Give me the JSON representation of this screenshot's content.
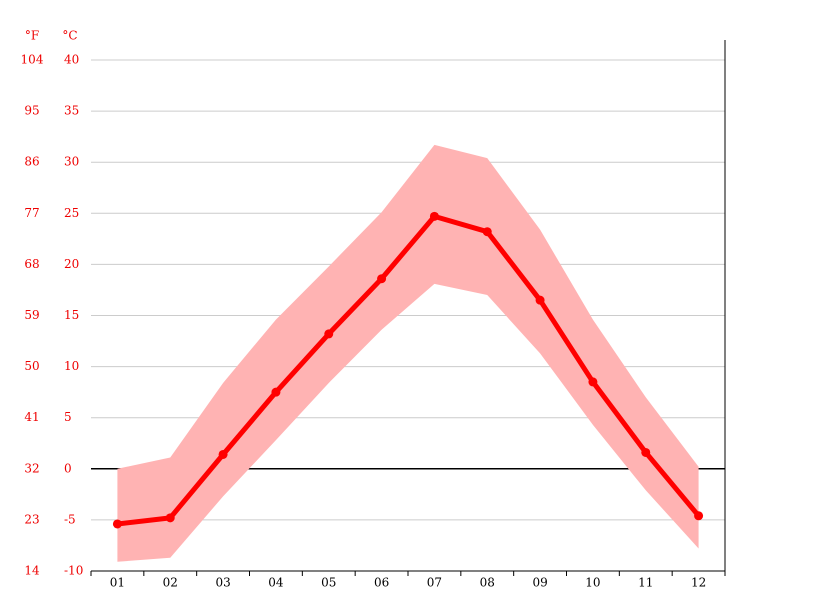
{
  "chart_data": {
    "type": "line",
    "y_unit_label": "°C",
    "y2_unit_label": "°F",
    "categories": [
      "01",
      "02",
      "03",
      "04",
      "05",
      "06",
      "07",
      "08",
      "09",
      "10",
      "11",
      "12"
    ],
    "series": [
      {
        "name": "mean",
        "color": "#ff0000",
        "values": [
          -5.4,
          -4.8,
          1.4,
          7.5,
          13.2,
          18.6,
          24.7,
          23.2,
          16.5,
          8.5,
          1.6,
          -4.6
        ]
      }
    ],
    "band": {
      "color": "#ffb3b3",
      "upper": [
        0.0,
        1.1,
        8.4,
        14.6,
        19.8,
        25.1,
        31.7,
        30.4,
        23.4,
        14.6,
        7.0,
        0.2
      ],
      "lower": [
        -9.1,
        -8.7,
        -2.7,
        2.8,
        8.4,
        13.6,
        18.1,
        17.0,
        11.3,
        4.3,
        -2.1,
        -7.8
      ]
    },
    "ylim": [
      -10,
      40
    ],
    "yticks": [
      40,
      35,
      30,
      25,
      20,
      15,
      10,
      5,
      0,
      -5,
      -10
    ],
    "y2lim": [
      14,
      104
    ],
    "y2ticks": [
      104,
      95,
      86,
      77,
      68,
      59,
      50,
      41,
      32,
      23,
      14
    ],
    "grid": true
  }
}
